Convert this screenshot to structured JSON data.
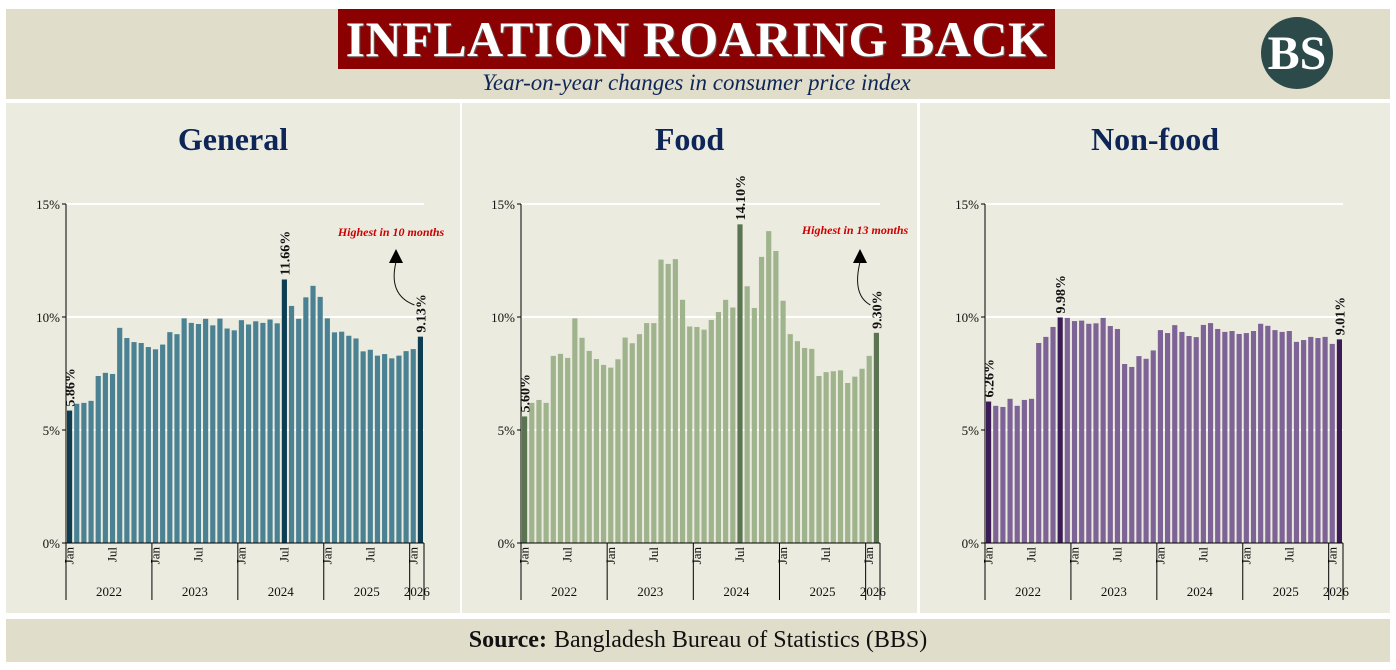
{
  "header": {
    "title": "INFLATION ROARING BACK",
    "subtitle": "Year-on-year changes in consumer price index",
    "logo_text": "BS"
  },
  "footer": {
    "source_label": "Source:",
    "source_text": "Bangladesh Bureau of Statistics (BBS)"
  },
  "chart_data": [
    {
      "type": "bar",
      "title": "General",
      "ylim": [
        0,
        15
      ],
      "yticks": [
        "0%",
        "5%",
        "10%",
        "15%"
      ],
      "grid": true,
      "month_ticks": [
        "Jan",
        "Jul",
        "Jan",
        "Jul",
        "Jan",
        "Jul",
        "Jan",
        "Jul",
        "Jan"
      ],
      "years": [
        "2022",
        "2023",
        "2024",
        "2025",
        "2026"
      ],
      "values": [
        5.86,
        6.16,
        6.2,
        6.29,
        7.39,
        7.53,
        7.48,
        9.52,
        9.07,
        8.89,
        8.85,
        8.67,
        8.57,
        8.78,
        9.33,
        9.24,
        9.94,
        9.74,
        9.69,
        9.92,
        9.63,
        9.93,
        9.49,
        9.41,
        9.86,
        9.67,
        9.81,
        9.74,
        9.89,
        9.72,
        11.66,
        10.49,
        9.92,
        10.87,
        11.38,
        10.89,
        9.94,
        9.32,
        9.35,
        9.17,
        9.05,
        8.48,
        8.55,
        8.29,
        8.36,
        8.17,
        8.29,
        8.49,
        8.58,
        9.13
      ],
      "bar_color": "#4a8193",
      "highlight_color": "#0d3d52",
      "data_labels": [
        {
          "index": 0,
          "text": "5.86%"
        },
        {
          "index": 30,
          "text": "11.66%"
        },
        {
          "index": 49,
          "text": "9.13%"
        }
      ],
      "annotation": "Highest in 10 months",
      "annotation_color": "#cc0000"
    },
    {
      "type": "bar",
      "title": "Food",
      "ylim": [
        0,
        15
      ],
      "yticks": [
        "0%",
        "5%",
        "10%",
        "15%"
      ],
      "grid": true,
      "month_ticks": [
        "Jan",
        "Jul",
        "Jan",
        "Jul",
        "Jan",
        "Jul",
        "Jan",
        "Jul",
        "Jan"
      ],
      "years": [
        "2022",
        "2023",
        "2024",
        "2025",
        "2026"
      ],
      "values": [
        5.6,
        6.2,
        6.33,
        6.2,
        8.28,
        8.37,
        8.19,
        9.94,
        9.08,
        8.5,
        8.14,
        7.88,
        7.76,
        8.13,
        9.09,
        8.84,
        9.24,
        9.73,
        9.73,
        12.54,
        12.35,
        12.56,
        10.76,
        9.58,
        9.56,
        9.44,
        9.87,
        10.22,
        10.76,
        10.42,
        14.1,
        11.36,
        10.4,
        12.66,
        13.8,
        12.92,
        10.72,
        9.24,
        8.93,
        8.63,
        8.59,
        7.39,
        7.56,
        7.6,
        7.64,
        7.08,
        7.36,
        7.71,
        8.28,
        9.3
      ],
      "bar_color": "#9fb38d",
      "highlight_color": "#5b7451",
      "data_labels": [
        {
          "index": 0,
          "text": "5.60%"
        },
        {
          "index": 30,
          "text": "14.10%"
        },
        {
          "index": 49,
          "text": "9.30%"
        }
      ],
      "annotation": "Highest in 13 months",
      "annotation_color": "#cc0000"
    },
    {
      "type": "bar",
      "title": "Non-food",
      "ylim": [
        0,
        15
      ],
      "yticks": [
        "0%",
        "5%",
        "10%",
        "15%"
      ],
      "grid": true,
      "month_ticks": [
        "Jan",
        "Jul",
        "Jan",
        "Jul",
        "Jan",
        "Jul",
        "Jan",
        "Jul",
        "Jan"
      ],
      "years": [
        "2022",
        "2023",
        "2024",
        "2025",
        "2026"
      ],
      "values": [
        6.26,
        6.07,
        6.02,
        6.38,
        6.07,
        6.33,
        6.38,
        8.85,
        9.12,
        9.56,
        9.98,
        9.96,
        9.82,
        9.84,
        9.7,
        9.72,
        9.96,
        9.6,
        9.47,
        7.92,
        7.79,
        8.27,
        8.15,
        8.52,
        9.42,
        9.29,
        9.64,
        9.34,
        9.16,
        9.11,
        9.65,
        9.73,
        9.47,
        9.34,
        9.38,
        9.25,
        9.29,
        9.38,
        9.7,
        9.61,
        9.42,
        9.34,
        9.38,
        8.9,
        8.98,
        9.12,
        9.07,
        9.12,
        8.81,
        9.01
      ],
      "bar_color": "#7e6396",
      "highlight_color": "#3b1c56",
      "data_labels": [
        {
          "index": 0,
          "text": "6.26%"
        },
        {
          "index": 10,
          "text": "9.98%"
        },
        {
          "index": 49,
          "text": "9.01%"
        }
      ],
      "annotation": "",
      "annotation_color": "#cc0000"
    }
  ]
}
